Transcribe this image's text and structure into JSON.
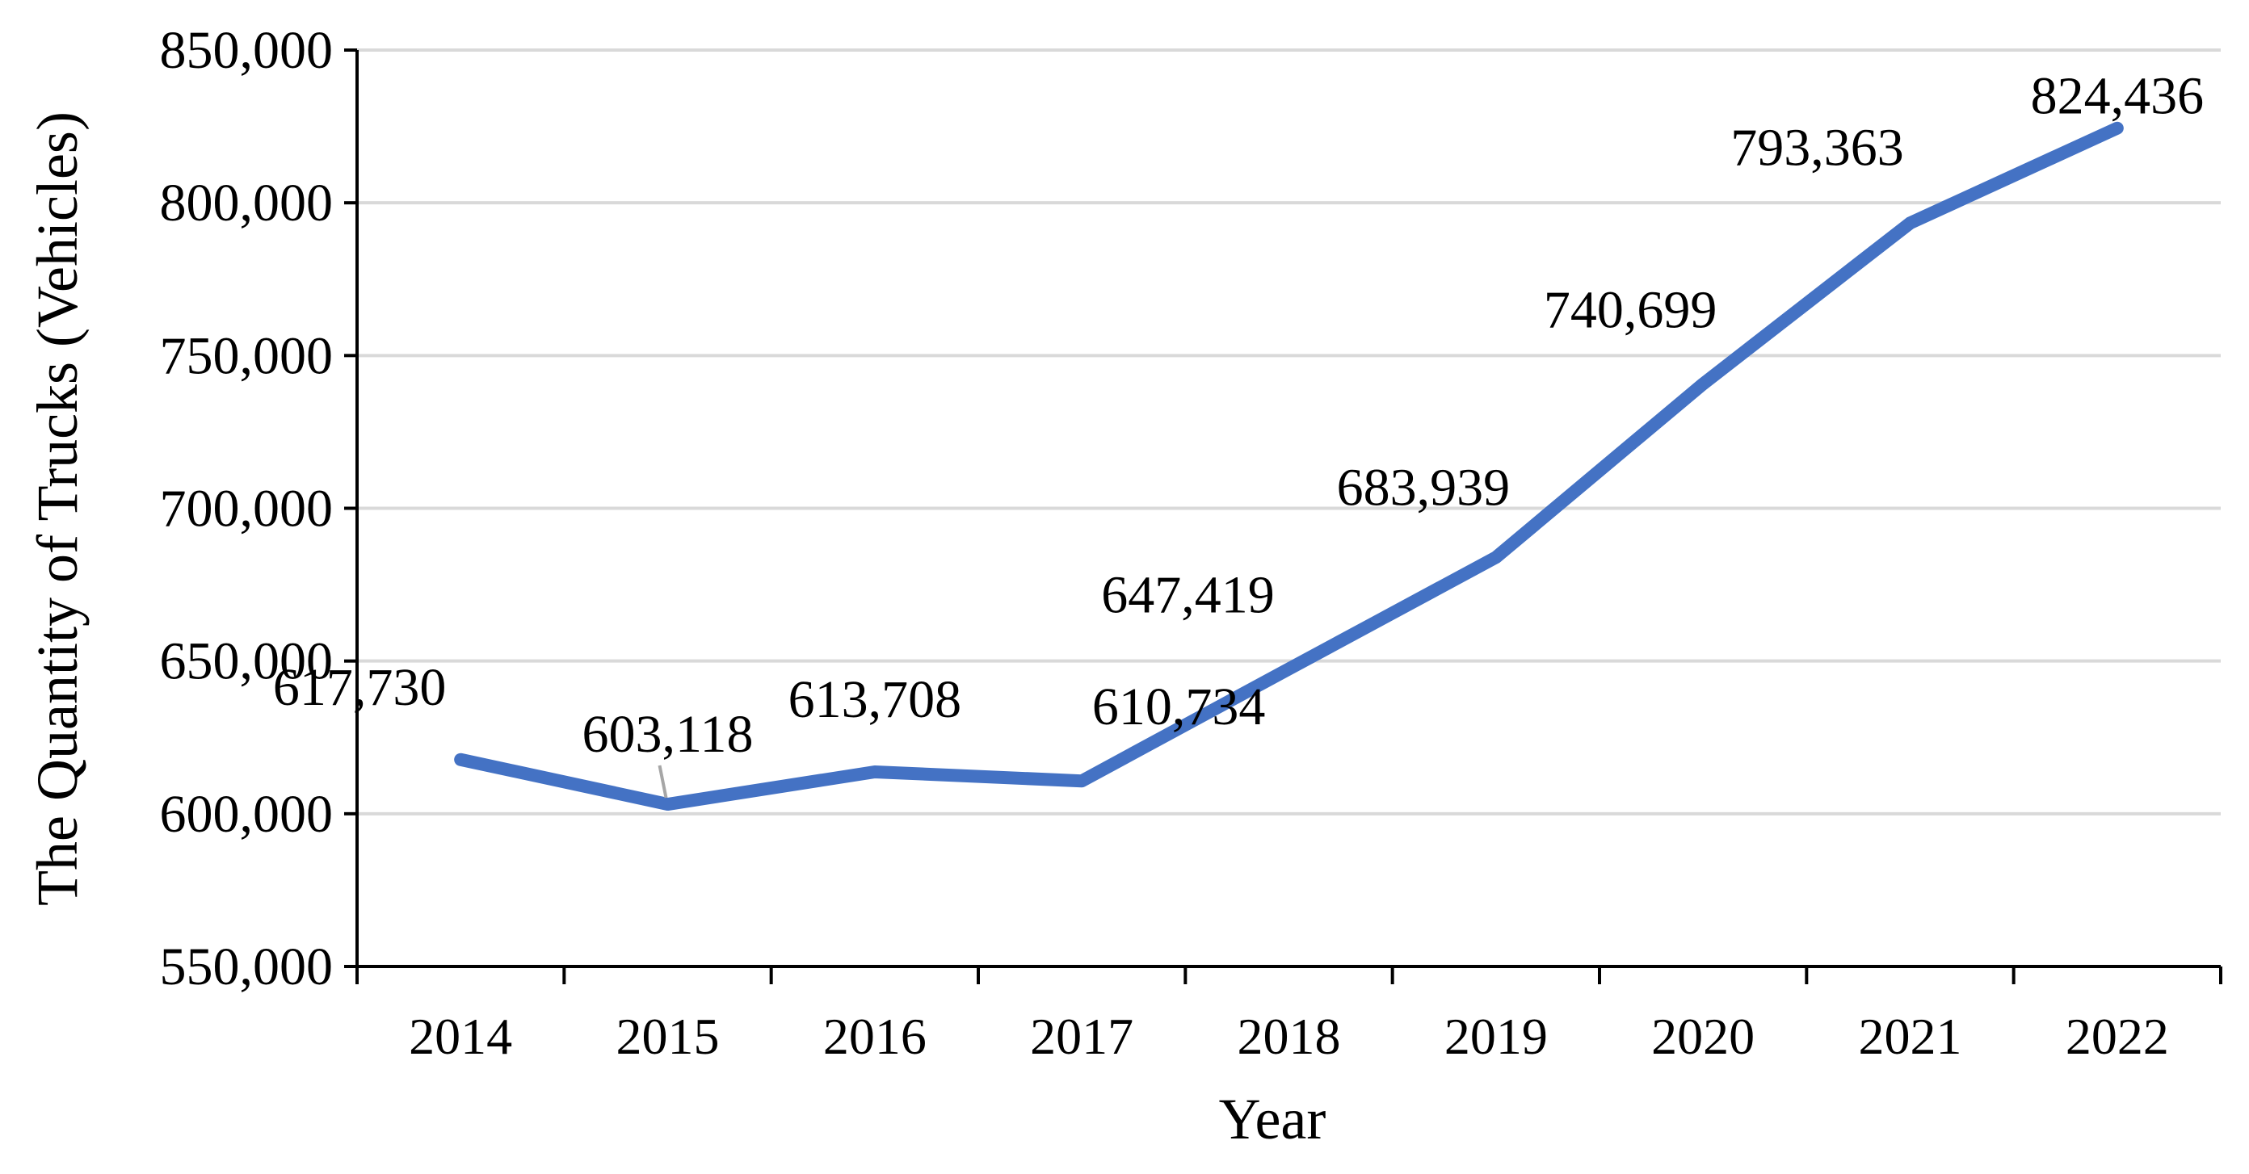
{
  "chart_data": {
    "type": "line",
    "title": "",
    "xlabel": "Year",
    "ylabel": "The Quantity of Trucks (Vehicles)",
    "categories": [
      "2014",
      "2015",
      "2016",
      "2017",
      "2018",
      "2019",
      "2020",
      "2021",
      "2022"
    ],
    "series": [
      {
        "values": [
          617730,
          603118,
          613708,
          610734,
          647419,
          683939,
          740699,
          793363,
          824436
        ],
        "color": "#4472c4"
      }
    ],
    "data_labels": [
      "617,730",
      "603,118",
      "613,708",
      "610,734",
      "647,419",
      "683,939",
      "740,699",
      "793,363",
      "824,436"
    ],
    "ylim": [
      550000,
      850000
    ],
    "y_ticks": [
      "550,000",
      "600,000",
      "650,000",
      "700,000",
      "750,000",
      "800,000",
      "850,000"
    ],
    "grid": true,
    "legend": "none",
    "gridline_color": "#d9d9d9"
  }
}
